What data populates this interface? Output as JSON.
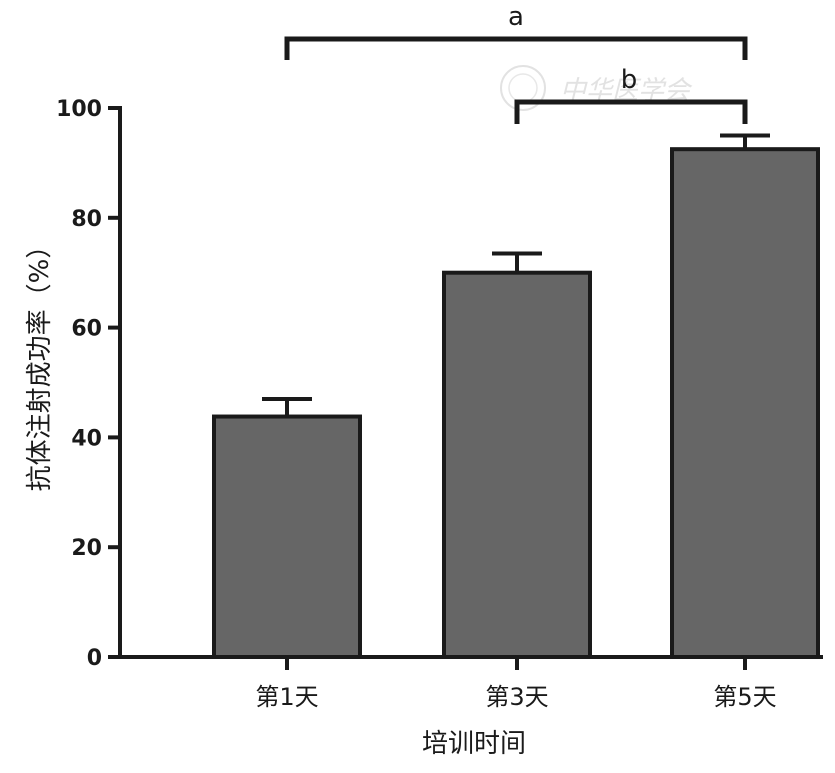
{
  "chart_data": {
    "type": "bar",
    "categories": [
      "第1天",
      "第3天",
      "第5天"
    ],
    "values": [
      43.8,
      70.0,
      92.5
    ],
    "errors": [
      3.2,
      3.5,
      2.5
    ],
    "xlabel": "培训时间",
    "ylabel": "抗体注射成功率（%）",
    "ylim": [
      0,
      100
    ],
    "yticks": [
      0,
      20,
      40,
      60,
      80,
      100
    ],
    "grid": false,
    "bar_color": "#666666",
    "significance": [
      {
        "label": "a",
        "from": 0,
        "to": 2
      },
      {
        "label": "b",
        "from": 1,
        "to": 2
      }
    ]
  },
  "watermark": {
    "text": "中华医学会"
  }
}
